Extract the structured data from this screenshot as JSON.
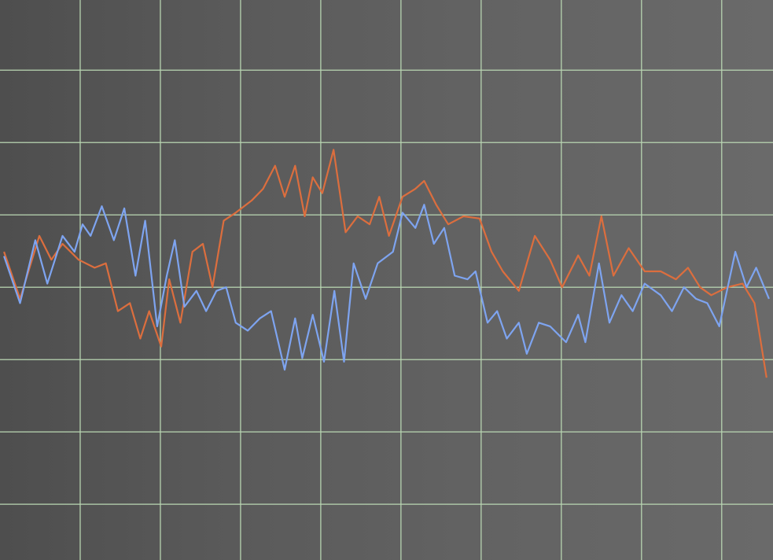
{
  "chart_data": {
    "type": "line",
    "xlim": [
      0,
      9.64
    ],
    "ylim": [
      -3.77,
      3.97
    ],
    "xticks": [
      1,
      2,
      3,
      4,
      5,
      6,
      7,
      8,
      9
    ],
    "yticks": [
      -3,
      -2,
      -1,
      0,
      1,
      2,
      3
    ],
    "grid": true,
    "series": [
      {
        "color": "#7ea4f0",
        "x": [
          0.05,
          0.25,
          0.44,
          0.59,
          0.78,
          0.93,
          1.03,
          1.13,
          1.27,
          1.42,
          1.55,
          1.69,
          1.81,
          1.96,
          2.08,
          2.18,
          2.3,
          2.45,
          2.57,
          2.7,
          2.82,
          2.94,
          3.09,
          3.24,
          3.38,
          3.55,
          3.68,
          3.77,
          3.9,
          4.04,
          4.17,
          4.29,
          4.41,
          4.56,
          4.71,
          4.9,
          5.02,
          5.18,
          5.29,
          5.41,
          5.54,
          5.67,
          5.83,
          5.93,
          6.08,
          6.2,
          6.32,
          6.47,
          6.57,
          6.72,
          6.86,
          7.06,
          7.21,
          7.3,
          7.47,
          7.6,
          7.75,
          7.89,
          8.04,
          8.24,
          8.38,
          8.53,
          8.68,
          8.82,
          8.97,
          9.17,
          9.31,
          9.43,
          9.59
        ],
        "values": [
          0.43,
          -0.22,
          0.65,
          0.05,
          0.71,
          0.49,
          0.87,
          0.71,
          1.12,
          0.65,
          1.09,
          0.16,
          0.92,
          -0.54,
          0.16,
          0.65,
          -0.27,
          -0.05,
          -0.33,
          -0.05,
          0,
          -0.49,
          -0.6,
          -0.43,
          -0.33,
          -1.14,
          -0.43,
          -0.98,
          -0.38,
          -1.03,
          -0.05,
          -1.03,
          0.33,
          -0.16,
          0.33,
          0.49,
          1.03,
          0.82,
          1.14,
          0.6,
          0.82,
          0.16,
          0.11,
          0.22,
          -0.49,
          -0.33,
          -0.71,
          -0.49,
          -0.92,
          -0.49,
          -0.54,
          -0.76,
          -0.38,
          -0.76,
          0.33,
          -0.49,
          -0.11,
          -0.33,
          0.05,
          -0.11,
          -0.33,
          0,
          -0.16,
          -0.22,
          -0.54,
          0.49,
          0,
          0.27,
          -0.16
        ]
      },
      {
        "color": "#dc6e3e",
        "x": [
          0.05,
          0.25,
          0.49,
          0.64,
          0.78,
          0.98,
          1.18,
          1.32,
          1.47,
          1.62,
          1.75,
          1.86,
          2.01,
          2.11,
          2.25,
          2.4,
          2.53,
          2.65,
          2.79,
          2.94,
          3.14,
          3.28,
          3.43,
          3.55,
          3.68,
          3.8,
          3.9,
          4.02,
          4.16,
          4.31,
          4.46,
          4.61,
          4.73,
          4.85,
          5.02,
          5.18,
          5.29,
          5.44,
          5.59,
          5.78,
          5.98,
          6.13,
          6.27,
          6.47,
          6.67,
          6.86,
          7.01,
          7.21,
          7.35,
          7.5,
          7.65,
          7.84,
          8.04,
          8.24,
          8.43,
          8.58,
          8.73,
          8.87,
          9.07,
          9.26,
          9.41,
          9.56
        ],
        "values": [
          0.49,
          -0.16,
          0.71,
          0.38,
          0.6,
          0.38,
          0.27,
          0.33,
          -0.33,
          -0.22,
          -0.71,
          -0.33,
          -0.82,
          0.11,
          -0.49,
          0.49,
          0.6,
          0,
          0.92,
          1.03,
          1.2,
          1.36,
          1.68,
          1.25,
          1.68,
          0.98,
          1.52,
          1.3,
          1.9,
          0.76,
          0.98,
          0.87,
          1.25,
          0.71,
          1.25,
          1.36,
          1.47,
          1.14,
          0.87,
          0.98,
          0.95,
          0.49,
          0.22,
          -0.05,
          0.71,
          0.38,
          0,
          0.44,
          0.16,
          0.98,
          0.16,
          0.54,
          0.22,
          0.22,
          0.11,
          0.27,
          0,
          -0.11,
          0,
          0.05,
          -0.22,
          -1.25
        ]
      }
    ]
  }
}
